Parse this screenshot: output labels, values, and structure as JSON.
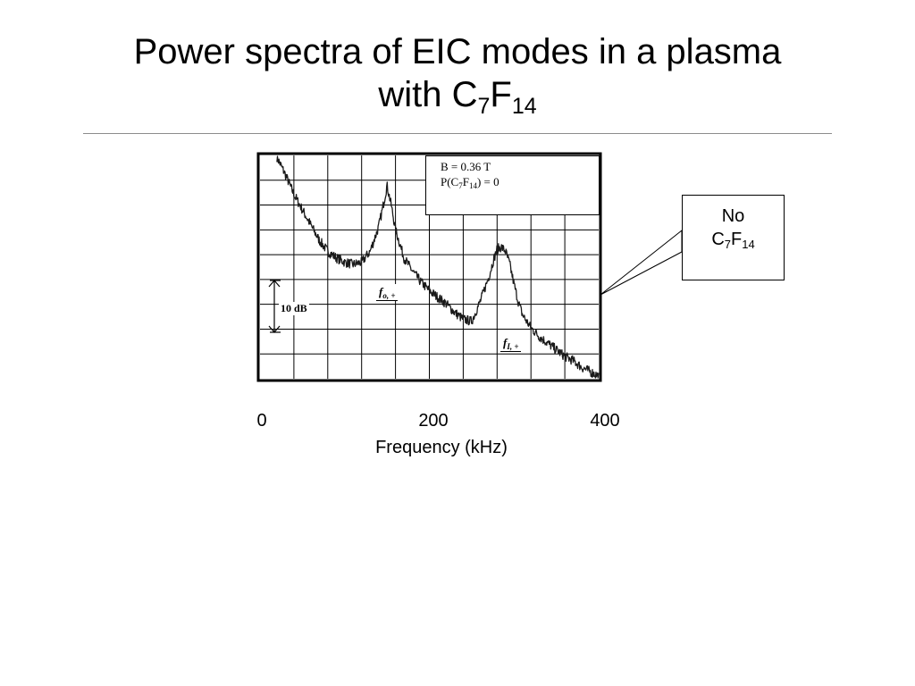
{
  "slide": {
    "title_line1": "Power spectra of EIC modes in a plasma",
    "title_line2_prefix": "with C",
    "title_line2_sub1": "7",
    "title_line2_mid": "F",
    "title_line2_sub2": "14"
  },
  "callout": {
    "line1": "No",
    "line2_prefix": "C",
    "line2_sub1": "7",
    "line2_mid": "F",
    "line2_sub2": "14"
  },
  "chart_data": {
    "type": "line",
    "title": "",
    "xlabel": "Frequency (kHz)",
    "ylabel": "",
    "xlim": [
      0,
      400
    ],
    "x_ticks": [
      "0",
      "200",
      "400"
    ],
    "grid": true,
    "scale_bar_label": "10 dB",
    "legend": {
      "line1": "B = 0.36 T",
      "line2_prefix": "P(C",
      "line2_sub1": "7",
      "line2_mid": "F",
      "line2_sub2": "14",
      "line2_suffix": ") = 0",
      "placement": "top-right"
    },
    "annotations": [
      {
        "symbol": "f",
        "subscript": "o, +",
        "x": 150
      },
      {
        "symbol": "f",
        "subscript": "I, +",
        "x": 294
      }
    ],
    "series": [
      {
        "x": [
          20,
          30,
          40,
          50,
          60,
          70,
          80,
          90,
          100,
          110,
          120,
          130,
          140,
          145,
          150,
          155,
          160,
          170,
          180,
          190,
          200,
          210,
          220,
          230,
          240,
          250,
          260,
          270,
          275,
          280,
          285,
          290,
          295,
          300,
          305,
          310,
          320,
          330,
          340,
          350,
          360,
          370,
          380,
          390,
          400
        ],
        "y": [
          0.0,
          -4.0,
          -8.5,
          -12.0,
          -15.5,
          -19.0,
          -21.5,
          -23.0,
          -24.0,
          -24.5,
          -24.0,
          -21.5,
          -16.0,
          -11.5,
          -6.5,
          -11.0,
          -16.5,
          -23.0,
          -26.0,
          -28.5,
          -30.5,
          -32.0,
          -33.5,
          -35.5,
          -37.0,
          -37.5,
          -33.0,
          -27.5,
          -24.0,
          -21.0,
          -20.5,
          -21.5,
          -24.5,
          -29.0,
          -33.0,
          -36.0,
          -39.0,
          -41.0,
          -42.5,
          -44.0,
          -45.5,
          -46.5,
          -48.0,
          -49.0,
          -50.0
        ]
      }
    ]
  }
}
